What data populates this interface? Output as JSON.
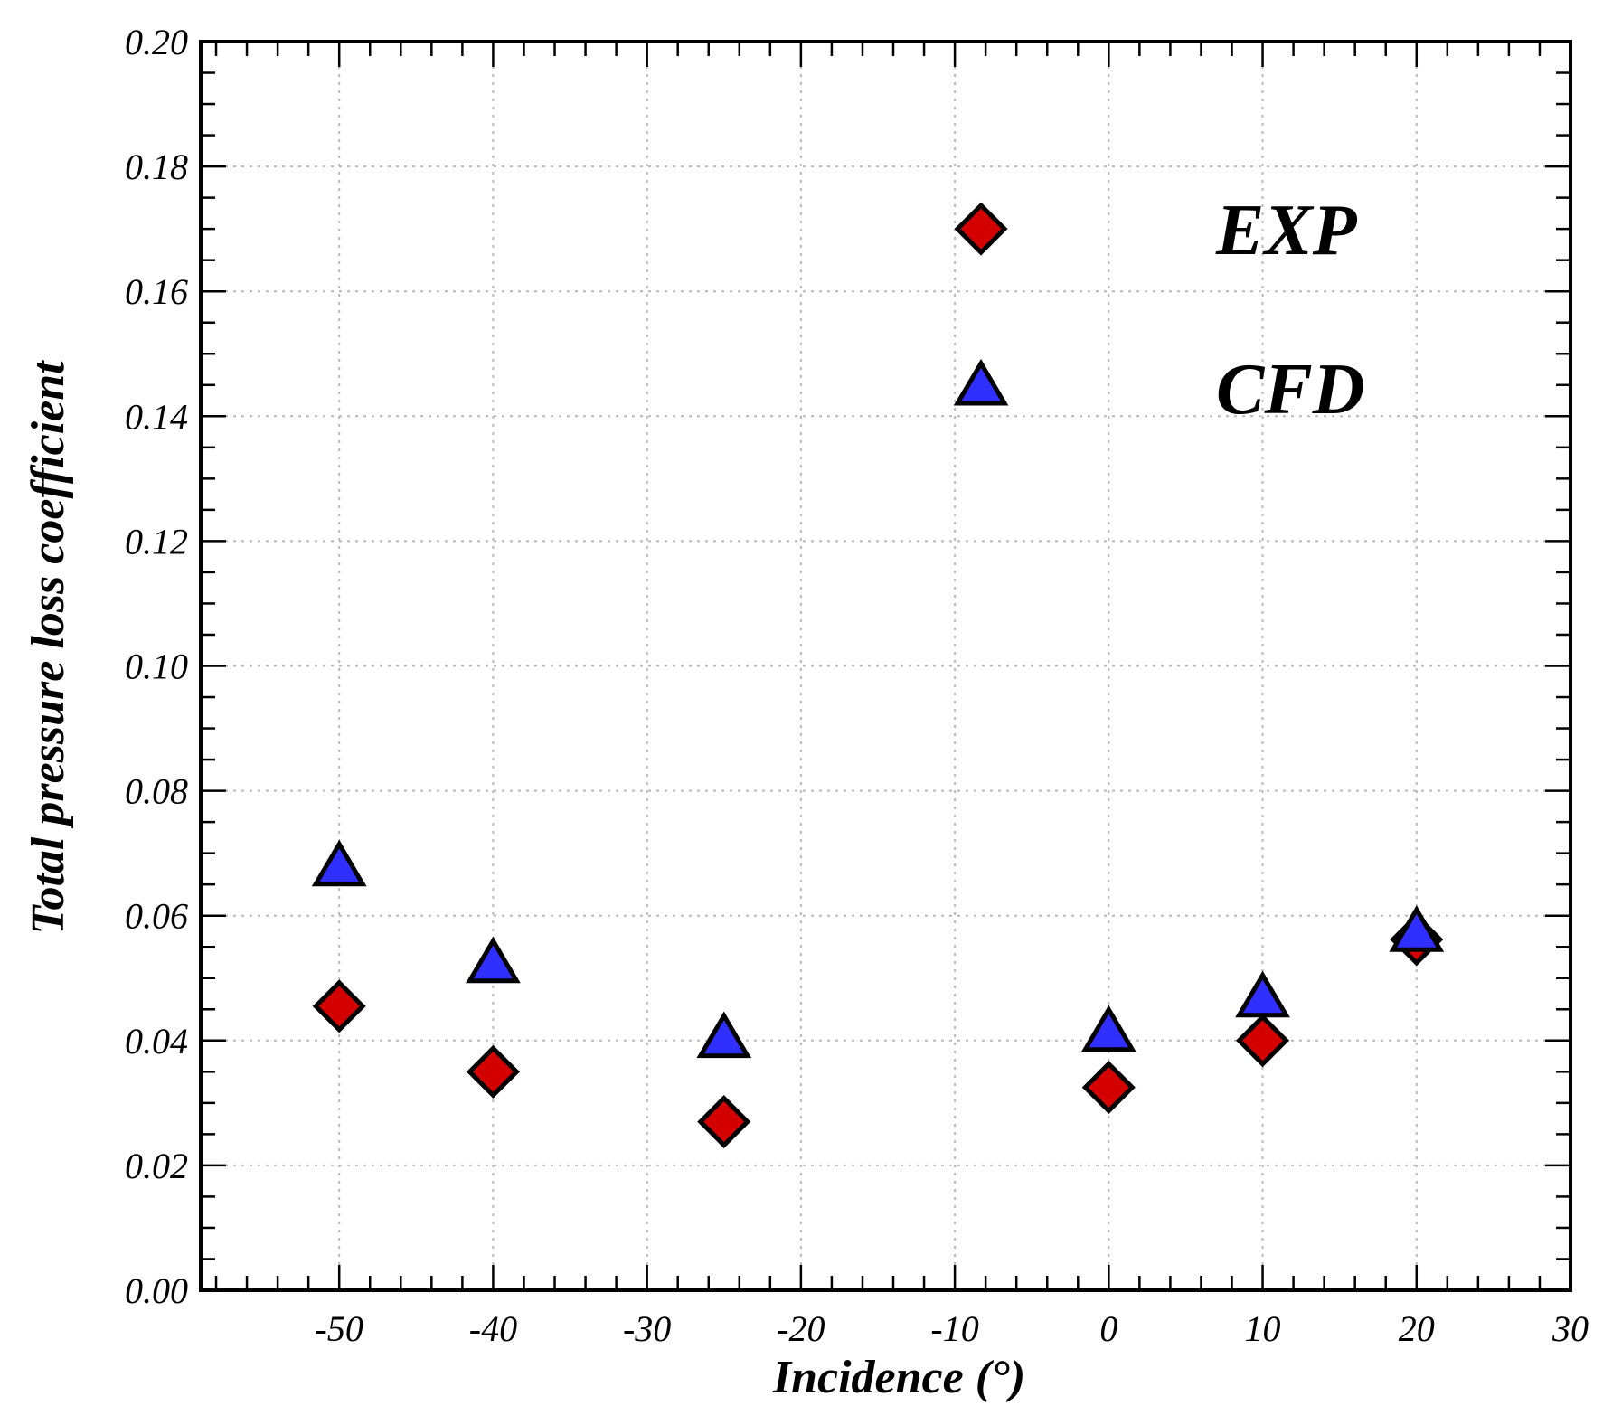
{
  "chart_data": {
    "type": "scatter",
    "title": "",
    "xlabel": "Incidence (°)",
    "ylabel": "Total pressure loss coefficient",
    "xlim": [
      -59,
      30
    ],
    "ylim": [
      0.0,
      0.2
    ],
    "x_ticks": [
      -50,
      -40,
      -30,
      -20,
      -10,
      0,
      10,
      20,
      30
    ],
    "x_tick_labels": [
      "-50",
      "-40",
      "-30",
      "-20",
      "-10",
      "0",
      "10",
      "20",
      "30"
    ],
    "y_ticks": [
      0.0,
      0.02,
      0.04,
      0.06,
      0.08,
      0.1,
      0.12,
      0.14,
      0.16,
      0.18,
      0.2
    ],
    "y_tick_labels": [
      "0.00",
      "0.02",
      "0.04",
      "0.06",
      "0.08",
      "0.10",
      "0.12",
      "0.14",
      "0.16",
      "0.18",
      "0.20"
    ],
    "grid": true,
    "legend_position": "top-right",
    "series": [
      {
        "name": "EXP",
        "marker": "diamond",
        "color": "#d40000",
        "x": [
          -50,
          -40,
          -25,
          0,
          10,
          20
        ],
        "y": [
          0.0455,
          0.035,
          0.027,
          0.0325,
          0.04,
          0.0562
        ]
      },
      {
        "name": "CFD",
        "marker": "triangle",
        "color": "#2f2fff",
        "x": [
          -50,
          -40,
          -25,
          0,
          10,
          20
        ],
        "y": [
          0.0675,
          0.052,
          0.04,
          0.041,
          0.0465,
          0.057
        ]
      }
    ]
  }
}
